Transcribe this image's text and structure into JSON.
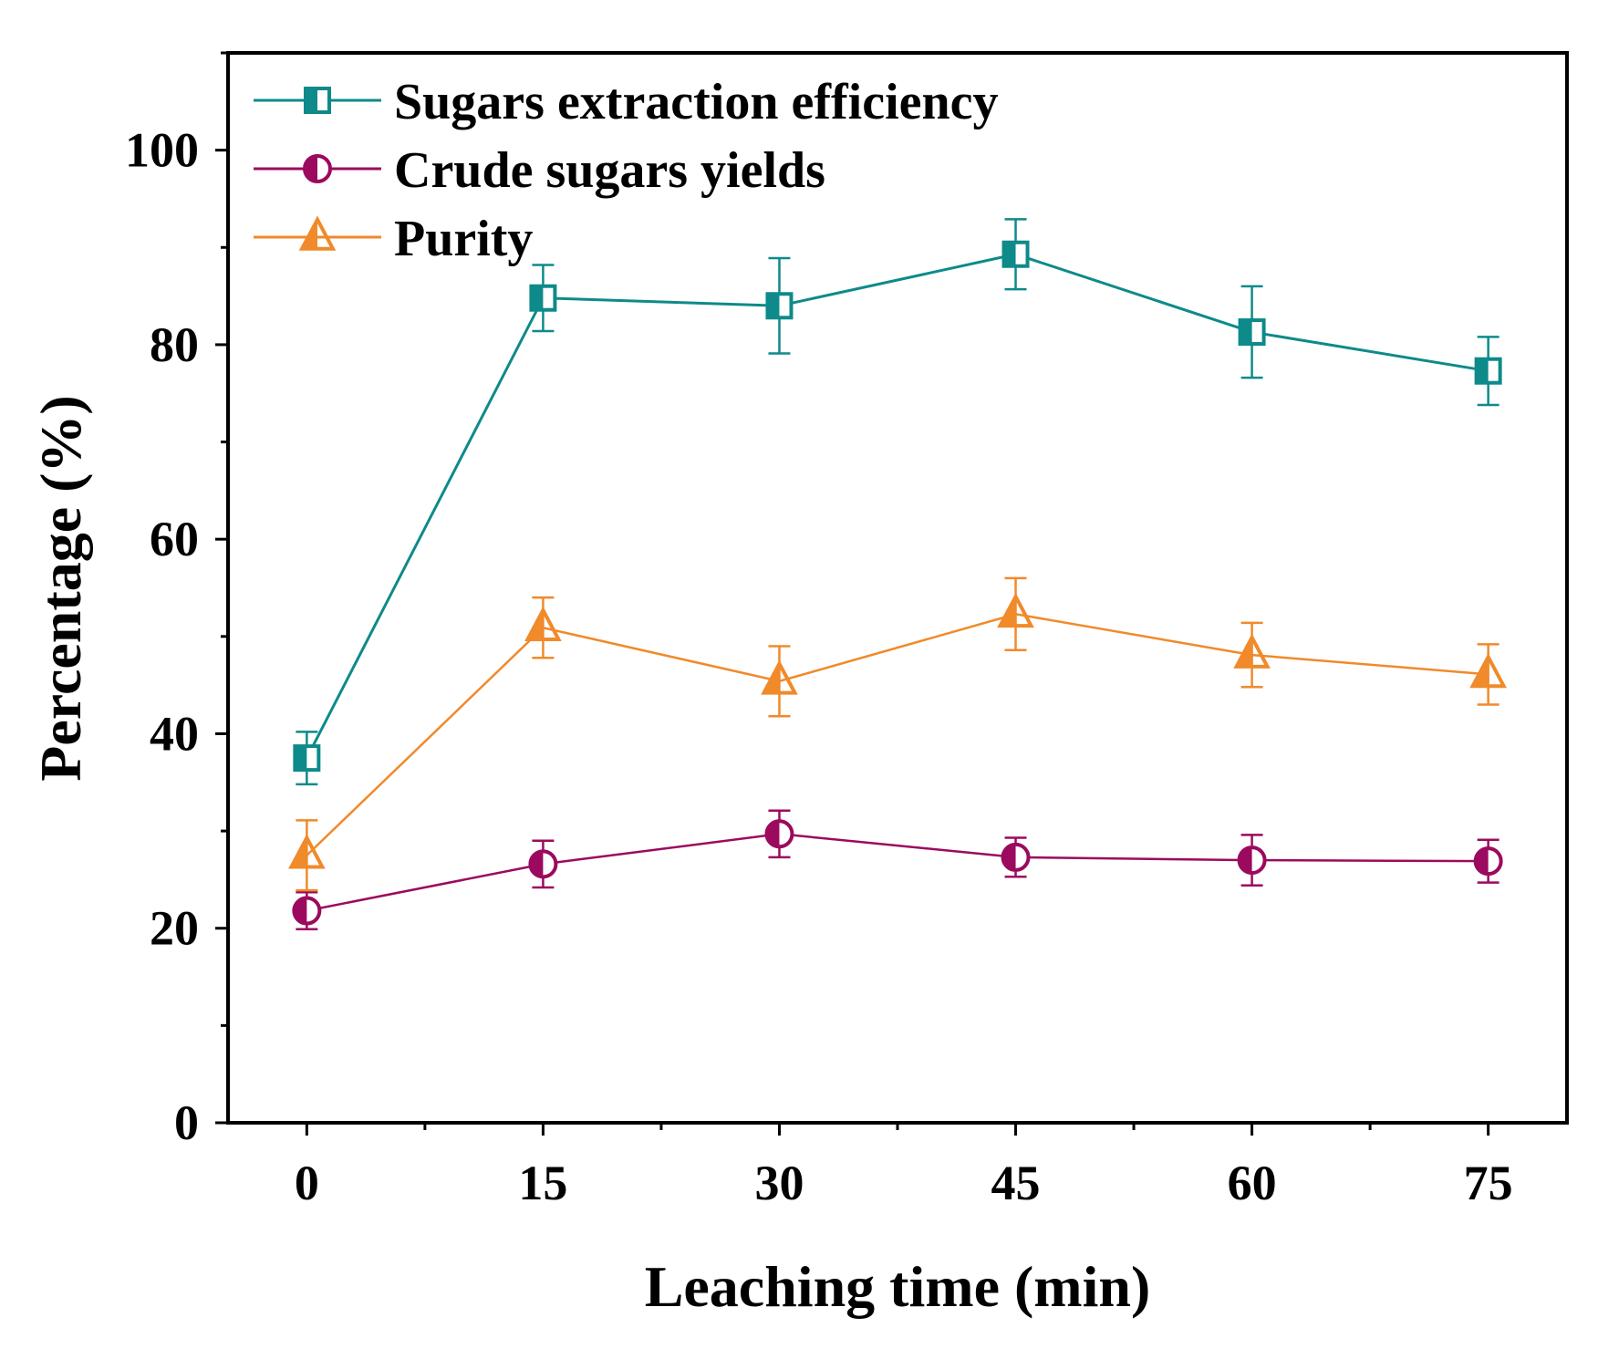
{
  "chart_data": {
    "type": "line",
    "title": "",
    "xlabel": "Leaching time (min)",
    "ylabel": "Percentage (%)",
    "x": [
      0,
      15,
      30,
      45,
      60,
      75
    ],
    "xlim": [
      -5,
      80
    ],
    "ylim": [
      0,
      110
    ],
    "xticks": [
      0,
      15,
      30,
      45,
      60,
      75
    ],
    "yticks": [
      0,
      20,
      40,
      60,
      80,
      100
    ],
    "legend_position": "top-left",
    "grid": false,
    "series": [
      {
        "name": "Sugars extraction efficiency",
        "color": "#0e8a8a",
        "marker": "half-square",
        "values": [
          37.5,
          84.8,
          84.0,
          89.3,
          81.3,
          77.3
        ],
        "errors": [
          2.7,
          3.4,
          4.9,
          3.6,
          4.7,
          3.5
        ]
      },
      {
        "name": "Crude sugars yields",
        "color": "#9b0a5e",
        "marker": "half-circle",
        "values": [
          21.8,
          26.6,
          29.7,
          27.3,
          27.0,
          26.9
        ],
        "errors": [
          1.9,
          2.4,
          2.4,
          2.0,
          2.6,
          2.2
        ]
      },
      {
        "name": "Purity",
        "color": "#f08a2a",
        "marker": "half-triangle",
        "values": [
          27.5,
          50.9,
          45.4,
          52.3,
          48.1,
          46.1
        ],
        "errors": [
          3.6,
          3.1,
          3.6,
          3.7,
          3.3,
          3.1
        ]
      }
    ]
  }
}
